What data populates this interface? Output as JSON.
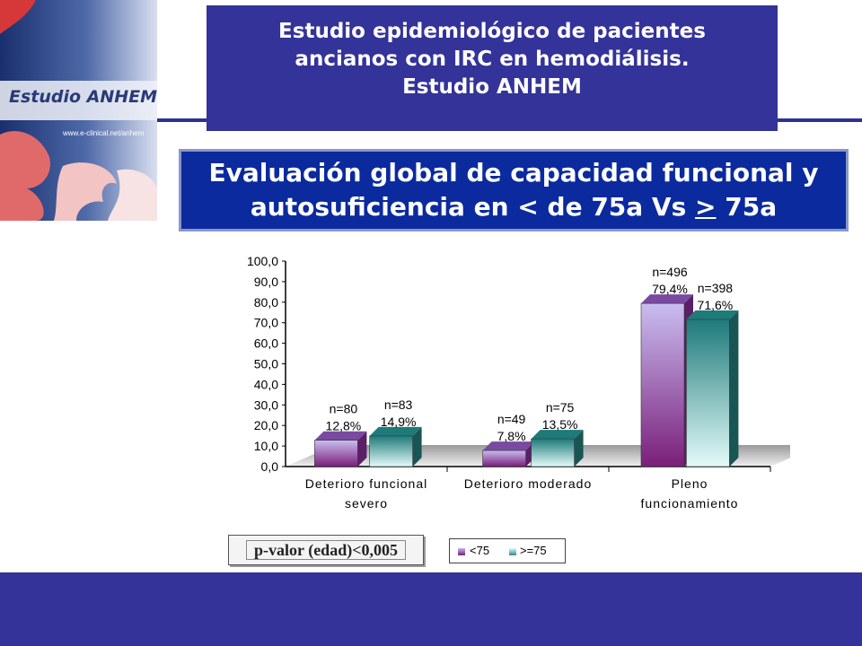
{
  "logo": {
    "text": "Estudio ANHEM",
    "url": "www.e-clinical.net/anhem"
  },
  "header": {
    "line1": "Estudio epidemiológico de pacientes",
    "line2": "ancianos con IRC en hemodiálisis.",
    "line3": "Estudio ANHEM"
  },
  "subtitle": {
    "line1": "Evaluación global de capacidad funcional y",
    "line2_a": "autosuficiencia en < de 75a Vs ",
    "line2_b": ">",
    "line2_c": " 75a"
  },
  "pvalue": "p-valor (edad)<0,005",
  "colors": {
    "lt75": "#9B7FC6",
    "ge75": "#2E8C8C",
    "header_bg": "#333399",
    "subtitle_bg": "#0A2A9E"
  },
  "chart_data": {
    "type": "bar",
    "categories": [
      [
        "Deterioro funcional",
        "severo"
      ],
      [
        "Deterioro moderado"
      ],
      [
        "Pleno",
        "funcionamiento"
      ]
    ],
    "series": [
      {
        "name": "<75",
        "values": [
          12.8,
          7.8,
          79.4
        ],
        "n_labels": [
          "n=80",
          "n=49",
          "n=496"
        ],
        "pct_labels": [
          "12,8%",
          "7,8%",
          "79,4%"
        ]
      },
      {
        "name": ">=75",
        "values": [
          14.9,
          13.5,
          71.6
        ],
        "n_labels": [
          "n=83",
          "n=75",
          "n=398"
        ],
        "pct_labels": [
          "14,9%",
          "13,5%",
          "71,6%"
        ]
      }
    ],
    "yticks": [
      "0,0",
      "10,0",
      "20,0",
      "30,0",
      "40,0",
      "50,0",
      "60,0",
      "70,0",
      "80,0",
      "90,0",
      "100,0"
    ],
    "ylim": [
      0,
      100
    ]
  }
}
